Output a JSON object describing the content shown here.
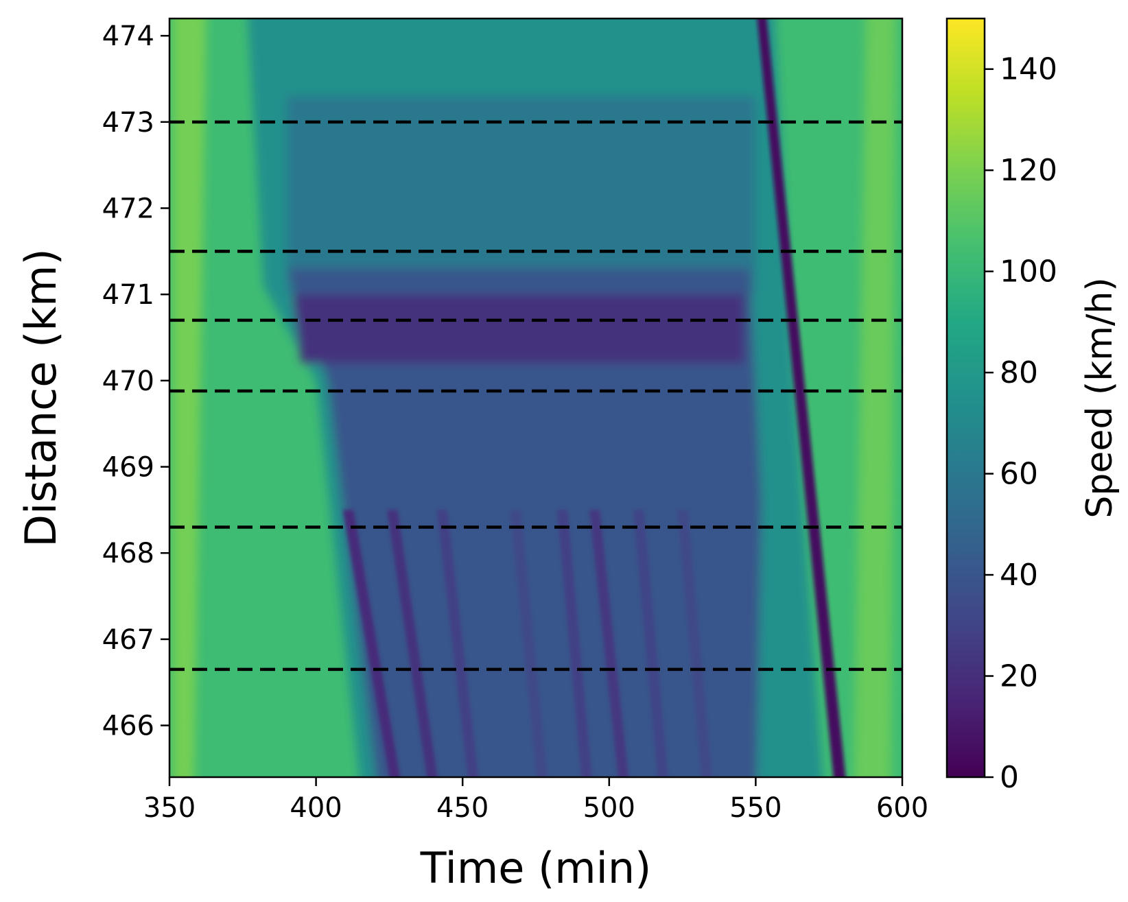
{
  "chart_data": {
    "type": "heatmap",
    "title": "",
    "xlabel": "Time (min)",
    "ylabel": "Distance (km)",
    "xlim": [
      350,
      600
    ],
    "ylim": [
      465.4,
      474.2
    ],
    "xticks": [
      350,
      400,
      450,
      500,
      550,
      600
    ],
    "yticks": [
      466,
      467,
      468,
      469,
      470,
      471,
      472,
      473,
      474
    ],
    "colorbar": {
      "label": "Speed (km/h)",
      "colormap": "viridis",
      "range": [
        0,
        150
      ],
      "ticks": [
        0,
        20,
        40,
        60,
        80,
        100,
        120,
        140
      ]
    },
    "detector_lines_km": [
      473.0,
      471.5,
      470.7,
      469.88,
      468.3,
      466.65
    ],
    "features": {
      "free_flow_speed_kmh": 110,
      "congestion_start_min": 390,
      "congestion_end_min": 548,
      "bottleneck_core_km": [
        470.2,
        471.0
      ],
      "bottleneck_core_speed_kmh": 22,
      "queue_speed_kmh": 40,
      "upstream_slowdown_speed_kmh": 75,
      "queue_tail_start": {
        "time_min": 400,
        "distance_km": 470.0
      },
      "queue_tail_end": {
        "time_min": 418,
        "distance_km": 465.4
      },
      "stop_and_go_waves": [
        {
          "distance_km_from": 468.5,
          "time_min_from": 411,
          "distance_km_to": 465.4,
          "time_min_to": 432,
          "speed_kmh": 18
        },
        {
          "distance_km_from": 468.5,
          "time_min_from": 426,
          "distance_km_to": 465.4,
          "time_min_to": 444,
          "speed_kmh": 22
        },
        {
          "distance_km_from": 468.5,
          "time_min_from": 443,
          "distance_km_to": 465.4,
          "time_min_to": 457,
          "speed_kmh": 28
        },
        {
          "distance_km_from": 468.5,
          "time_min_from": 468,
          "distance_km_to": 465.4,
          "time_min_to": 480,
          "speed_kmh": 32
        },
        {
          "distance_km_from": 468.5,
          "time_min_from": 484,
          "distance_km_to": 465.4,
          "time_min_to": 495,
          "speed_kmh": 28
        },
        {
          "distance_km_from": 468.5,
          "time_min_from": 495,
          "distance_km_to": 465.4,
          "time_min_to": 508,
          "speed_kmh": 24
        },
        {
          "distance_km_from": 468.5,
          "time_min_from": 510,
          "distance_km_to": 465.4,
          "time_min_to": 521,
          "speed_kmh": 30
        },
        {
          "distance_km_from": 468.5,
          "time_min_from": 525,
          "distance_km_to": 465.4,
          "time_min_to": 536,
          "speed_kmh": 32
        }
      ],
      "main_shockwave": {
        "distance_km_from": 474.2,
        "time_min_from": 550,
        "distance_km_to": 465.4,
        "time_min_to": 580,
        "speed_kmh": 5
      }
    }
  }
}
